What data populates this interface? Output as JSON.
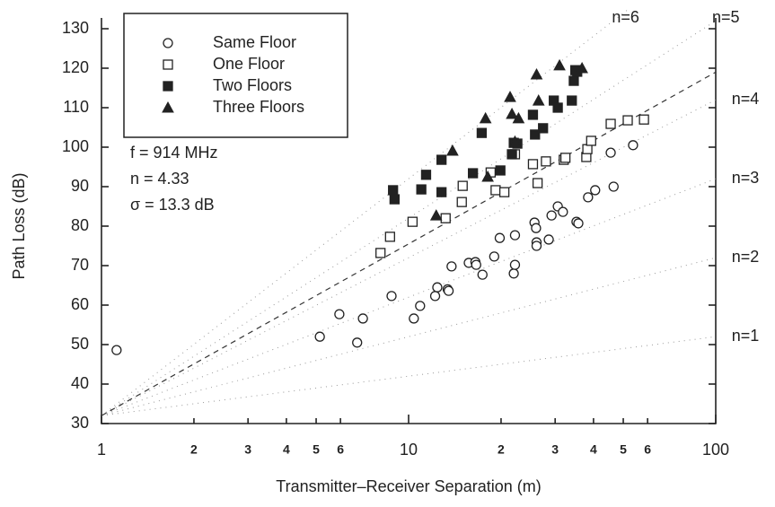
{
  "chart_data": {
    "type": "scatter",
    "xlabel": "Transmitter–Receiver Separation (m)",
    "ylabel": "Path Loss (dB)",
    "xscale": "log",
    "xlim": [
      1,
      100
    ],
    "ylim": [
      30,
      130
    ],
    "xticks": [
      1,
      2,
      3,
      4,
      5,
      6,
      10,
      {
        "value": 20,
        "label": "2"
      },
      {
        "value": 30,
        "label": "3"
      },
      {
        "value": 40,
        "label": "4"
      },
      {
        "value": 50,
        "label": "5"
      },
      {
        "value": 60,
        "label": "6"
      },
      100
    ],
    "yticks": [
      30,
      40,
      50,
      60,
      70,
      80,
      90,
      100,
      110,
      120,
      130
    ],
    "legend_position": "upper left",
    "annotations": [
      "f = 914 MHz",
      "n = 4.33",
      "σ = 13.3 dB"
    ],
    "fit_line": {
      "x": [
        1,
        100
      ],
      "y": [
        32,
        119
      ],
      "color": "#333"
    },
    "reference_lines": [
      {
        "label": "n=1",
        "x": [
          1,
          100
        ],
        "y": [
          32,
          52
        ]
      },
      {
        "label": "n=2",
        "x": [
          1,
          100
        ],
        "y": [
          32,
          72
        ]
      },
      {
        "label": "n=3",
        "x": [
          1,
          100
        ],
        "y": [
          32,
          92
        ]
      },
      {
        "label": "n=4",
        "x": [
          1,
          100
        ],
        "y": [
          32,
          112
        ]
      },
      {
        "label": "n=5",
        "x": [
          1,
          100
        ],
        "y": [
          32,
          132
        ]
      },
      {
        "label": "n=6",
        "x": [
          1,
          100
        ],
        "y": [
          32,
          152
        ]
      }
    ],
    "series": [
      {
        "name": "Same Floor",
        "marker": "circle-open",
        "color": "#222",
        "x": [
          1.12,
          5.14,
          5.95,
          6.8,
          7.1,
          8.8,
          10.4,
          10.9,
          12.2,
          12.4,
          13.4,
          13.5,
          13.8,
          15.7,
          16.5,
          16.6,
          17.4,
          19,
          19.8,
          22,
          22.2,
          22.2,
          25.7,
          26,
          26.1,
          26.1,
          28.6,
          29.2,
          30.6,
          31.8,
          35.2,
          35.7,
          38.4,
          40.5,
          45.5,
          46.5,
          53.8
        ],
        "values": [
          48.6,
          52,
          57.7,
          50.5,
          56.6,
          62.3,
          56.6,
          59.8,
          62.3,
          64.5,
          64,
          63.6,
          69.8,
          70.7,
          70.9,
          70.2,
          67.7,
          72.3,
          77,
          68,
          70.2,
          77.7,
          80.9,
          79.5,
          75.9,
          75,
          76.6,
          82.7,
          85,
          83.6,
          81.1,
          80.7,
          87.3,
          89.1,
          98.6,
          90,
          100.5
        ]
      },
      {
        "name": "One Floor",
        "marker": "square-open",
        "color": "#222",
        "x": [
          8.1,
          8.7,
          10.3,
          13.2,
          14.9,
          15,
          18.5,
          19.2,
          20.5,
          22.2,
          25.4,
          26.3,
          28,
          32,
          32.4,
          37.9,
          38.2,
          39.3,
          45.5,
          51.7,
          58.4
        ],
        "values": [
          73.2,
          77.3,
          81.1,
          82,
          86.1,
          90.2,
          93.6,
          89.1,
          88.6,
          98.2,
          95.7,
          90.9,
          96.4,
          96.8,
          97.3,
          97.5,
          99.5,
          101.6,
          105.9,
          106.8,
          107
        ]
      },
      {
        "name": "Two Floors",
        "marker": "square-filled",
        "color": "#222",
        "x": [
          8.9,
          9,
          11,
          11.4,
          12.8,
          12.8,
          16.2,
          17.3,
          19.9,
          21.7,
          22,
          22.6,
          25.4,
          25.8,
          27.4,
          29.7,
          30.6,
          34,
          34.9,
          34.5,
          35.4
        ],
        "values": [
          89.1,
          86.8,
          89.3,
          93,
          88.6,
          96.8,
          93.4,
          103.6,
          94.1,
          98.2,
          101.1,
          100.9,
          108.2,
          103.2,
          104.8,
          111.8,
          110,
          111.8,
          119.5,
          116.8,
          119.1
        ]
      },
      {
        "name": "Three Floors",
        "marker": "triangle-filled",
        "color": "#222",
        "x": [
          12.3,
          13.9,
          17.8,
          18.1,
          21.4,
          21.7,
          22.2,
          22.8,
          26.1,
          26.5,
          31,
          36.7
        ],
        "values": [
          82.7,
          99.1,
          107.3,
          92.5,
          112.7,
          108.4,
          101.4,
          107.3,
          118.4,
          111.8,
          120.7,
          120
        ]
      }
    ]
  }
}
